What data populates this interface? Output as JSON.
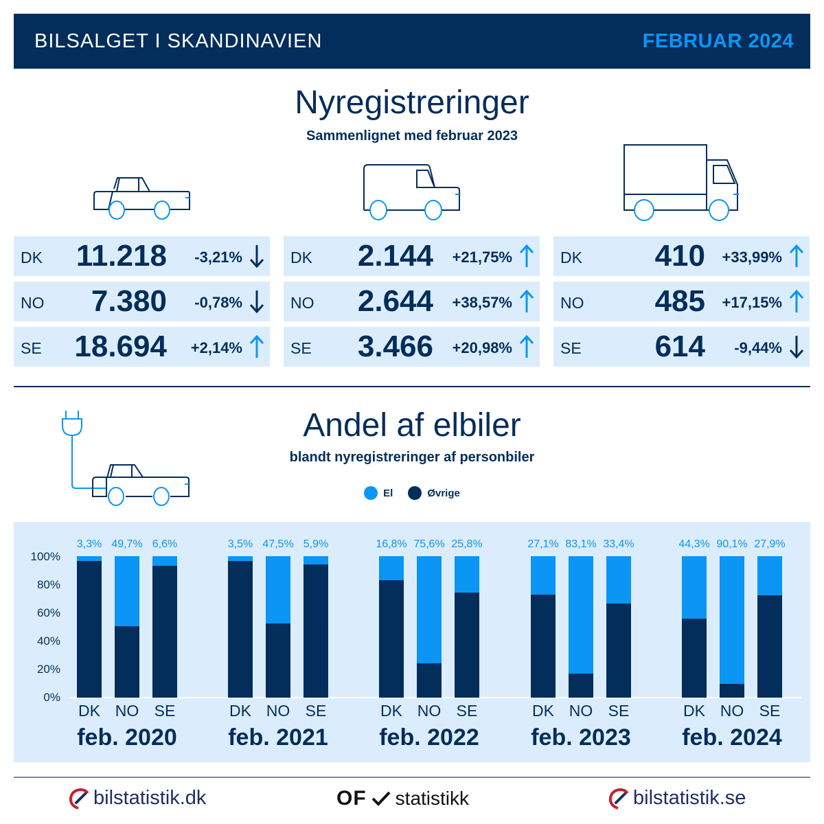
{
  "header": {
    "title": "BILSALGET I SKANDINAVIEN",
    "date": "FEBRUAR 2024"
  },
  "colors": {
    "navy": "#032d5a",
    "accent_blue": "#0b95f5",
    "panel_bg": "#dbedfc"
  },
  "registrations": {
    "title": "Nyregistreringer",
    "subtitle": "Sammenlignet med februar 2023",
    "columns": [
      {
        "vehicle": "personbil",
        "icon": "car-icon",
        "rows": [
          {
            "country": "DK",
            "value": "11.218",
            "change": "-3,21%",
            "direction": "down"
          },
          {
            "country": "NO",
            "value": "7.380",
            "change": "-0,78%",
            "direction": "down"
          },
          {
            "country": "SE",
            "value": "18.694",
            "change": "+2,14%",
            "direction": "up"
          }
        ]
      },
      {
        "vehicle": "varebil",
        "icon": "van-icon",
        "rows": [
          {
            "country": "DK",
            "value": "2.144",
            "change": "+21,75%",
            "direction": "up"
          },
          {
            "country": "NO",
            "value": "2.644",
            "change": "+38,57%",
            "direction": "up"
          },
          {
            "country": "SE",
            "value": "3.466",
            "change": "+20,98%",
            "direction": "up"
          }
        ]
      },
      {
        "vehicle": "lastbil",
        "icon": "truck-icon",
        "rows": [
          {
            "country": "DK",
            "value": "410",
            "change": "+33,99%",
            "direction": "up"
          },
          {
            "country": "NO",
            "value": "485",
            "change": "+17,15%",
            "direction": "up"
          },
          {
            "country": "SE",
            "value": "614",
            "change": "-9,44%",
            "direction": "down"
          }
        ]
      }
    ]
  },
  "ev_share": {
    "title": "Andel af elbiler",
    "subtitle": "blandt nyregistreringer af personbiler",
    "icon": "ev-car-plug-icon",
    "legend": [
      {
        "label": "El",
        "color": "#0b95f5"
      },
      {
        "label": "Øvrige",
        "color": "#032d5a"
      }
    ],
    "y_ticks": [
      "100%",
      "80%",
      "60%",
      "40%",
      "20%",
      "0%"
    ],
    "groups": [
      {
        "label": "feb. 2020",
        "bars": [
          {
            "country": "DK",
            "el": 3.3,
            "el_label": "3,3%"
          },
          {
            "country": "NO",
            "el": 49.7,
            "el_label": "49,7%"
          },
          {
            "country": "SE",
            "el": 6.6,
            "el_label": "6,6%"
          }
        ]
      },
      {
        "label": "feb. 2021",
        "bars": [
          {
            "country": "DK",
            "el": 3.5,
            "el_label": "3,5%"
          },
          {
            "country": "NO",
            "el": 47.5,
            "el_label": "47,5%"
          },
          {
            "country": "SE",
            "el": 5.9,
            "el_label": "5,9%"
          }
        ]
      },
      {
        "label": "feb. 2022",
        "bars": [
          {
            "country": "DK",
            "el": 16.8,
            "el_label": "16,8%"
          },
          {
            "country": "NO",
            "el": 75.6,
            "el_label": "75,6%"
          },
          {
            "country": "SE",
            "el": 25.8,
            "el_label": "25,8%"
          }
        ]
      },
      {
        "label": "feb. 2023",
        "bars": [
          {
            "country": "DK",
            "el": 27.1,
            "el_label": "27,1%"
          },
          {
            "country": "NO",
            "el": 83.1,
            "el_label": "83,1%"
          },
          {
            "country": "SE",
            "el": 33.4,
            "el_label": "33,4%"
          }
        ]
      },
      {
        "label": "feb. 2024",
        "bars": [
          {
            "country": "DK",
            "el": 44.3,
            "el_label": "44,3%"
          },
          {
            "country": "NO",
            "el": 90.1,
            "el_label": "90,1%"
          },
          {
            "country": "SE",
            "el": 27.9,
            "el_label": "27,9%"
          }
        ]
      }
    ]
  },
  "footer": {
    "logos": [
      {
        "name": "bilstatistik.dk",
        "text": "bilstatistik.dk"
      },
      {
        "name": "ofv-statistikk",
        "mark": "OF",
        "text": "statistikk"
      },
      {
        "name": "bilstatistik.se",
        "text": "bilstatistik.se"
      }
    ]
  },
  "chart_data": {
    "type": "bar",
    "stacked": true,
    "title": "Andel af elbiler",
    "subtitle": "blandt nyregistreringer af personbiler",
    "xlabel": "",
    "ylabel": "",
    "ylim": [
      0,
      100
    ],
    "y_ticks": [
      "0%",
      "20%",
      "40%",
      "60%",
      "80%",
      "100%"
    ],
    "legend": [
      "El",
      "Øvrige"
    ],
    "legend_position": "top",
    "grid": false,
    "categories": [
      "feb. 2020 DK",
      "feb. 2020 NO",
      "feb. 2020 SE",
      "feb. 2021 DK",
      "feb. 2021 NO",
      "feb. 2021 SE",
      "feb. 2022 DK",
      "feb. 2022 NO",
      "feb. 2022 SE",
      "feb. 2023 DK",
      "feb. 2023 NO",
      "feb. 2023 SE",
      "feb. 2024 DK",
      "feb. 2024 NO",
      "feb. 2024 SE"
    ],
    "series": [
      {
        "name": "El",
        "values": [
          3.3,
          49.7,
          6.6,
          3.5,
          47.5,
          5.9,
          16.8,
          75.6,
          25.8,
          27.1,
          83.1,
          33.4,
          44.3,
          90.1,
          27.9
        ]
      },
      {
        "name": "Øvrige",
        "values": [
          96.7,
          50.3,
          93.4,
          96.5,
          52.5,
          94.1,
          83.2,
          24.4,
          74.2,
          72.9,
          16.9,
          66.6,
          55.7,
          9.9,
          72.1
        ]
      }
    ]
  }
}
